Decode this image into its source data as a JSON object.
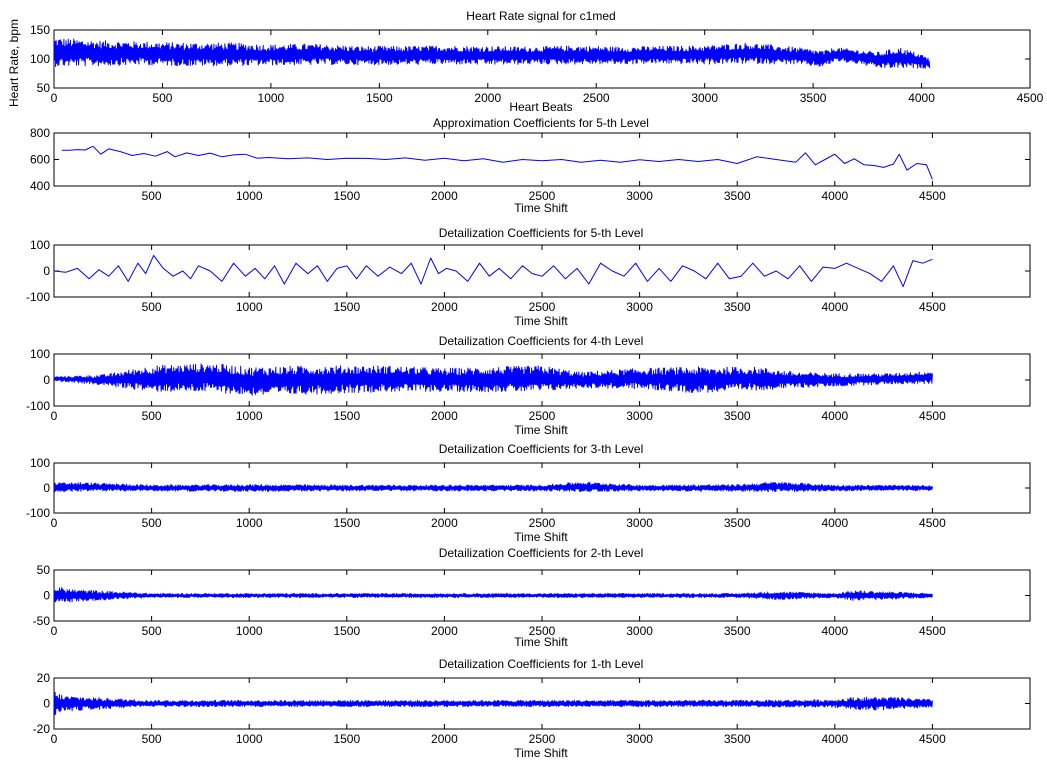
{
  "chart_data": [
    {
      "type": "line",
      "title": "Heart Rate signal for c1med",
      "xlabel": "Heart Beats",
      "ylabel": "Heart Rate, bpm",
      "xlim": [
        0,
        4500
      ],
      "ylim": [
        50,
        150
      ],
      "xticks": [
        0,
        500,
        1000,
        1500,
        2000,
        2500,
        3000,
        3500,
        4000,
        4500
      ],
      "yticks": [
        50,
        100,
        150
      ],
      "color": "#0000ff",
      "series": [
        {
          "x": [
            0,
            200,
            400,
            600,
            800,
            1000,
            1200,
            1400,
            1600,
            1800,
            2000,
            2200,
            2400,
            2600,
            2800,
            3000,
            3200,
            3400,
            3550,
            3600,
            3700,
            3800,
            3900,
            4000,
            4040
          ],
          "y": [
            112,
            110,
            110,
            108,
            108,
            107,
            108,
            106,
            106,
            107,
            106,
            106,
            107,
            106,
            107,
            107,
            110,
            106,
            100,
            108,
            104,
            98,
            102,
            96,
            92
          ],
          "amplitude": [
            25,
            22,
            20,
            20,
            20,
            18,
            18,
            16,
            16,
            16,
            16,
            15,
            16,
            15,
            15,
            16,
            18,
            15,
            14,
            12,
            12,
            14,
            18,
            12,
            8
          ]
        }
      ]
    },
    {
      "type": "line",
      "title": "Approximation Coefficients for 5-th Level",
      "xlabel": "Time Shift",
      "xlim": [
        0,
        5000
      ],
      "ylim": [
        400,
        800
      ],
      "xticks": [
        500,
        1000,
        1500,
        2000,
        2500,
        3000,
        3500,
        4000,
        4500
      ],
      "yticks": [
        400,
        600,
        800
      ],
      "color": "#0000ff",
      "series": [
        {
          "x": [
            40,
            80,
            120,
            160,
            200,
            240,
            280,
            340,
            400,
            460,
            520,
            580,
            620,
            680,
            740,
            800,
            860,
            920,
            980,
            1040,
            1100,
            1200,
            1300,
            1400,
            1500,
            1600,
            1700,
            1800,
            1900,
            2000,
            2100,
            2200,
            2300,
            2400,
            2500,
            2600,
            2700,
            2800,
            2900,
            3000,
            3100,
            3200,
            3300,
            3400,
            3500,
            3600,
            3700,
            3800,
            3850,
            3900,
            3950,
            4000,
            4050,
            4100,
            4150,
            4200,
            4250,
            4300,
            4330,
            4370,
            4420,
            4470,
            4500
          ],
          "y": [
            670,
            670,
            675,
            672,
            700,
            640,
            680,
            660,
            630,
            645,
            625,
            660,
            620,
            650,
            630,
            648,
            620,
            635,
            640,
            610,
            615,
            605,
            612,
            600,
            610,
            608,
            600,
            612,
            595,
            610,
            590,
            605,
            580,
            600,
            590,
            600,
            580,
            595,
            580,
            598,
            585,
            600,
            585,
            600,
            570,
            620,
            600,
            580,
            650,
            560,
            600,
            640,
            570,
            605,
            560,
            555,
            540,
            565,
            640,
            520,
            570,
            560,
            450
          ]
        }
      ]
    },
    {
      "type": "line",
      "title": "Detailization Coefficients for 5-th Level",
      "xlabel": "Time Shift",
      "xlim": [
        0,
        5000
      ],
      "ylim": [
        -100,
        100
      ],
      "xticks": [
        500,
        1000,
        1500,
        2000,
        2500,
        3000,
        3500,
        4000,
        4500
      ],
      "yticks": [
        -100,
        0,
        100
      ],
      "color": "#0000ff",
      "series": [
        {
          "x": [
            0,
            60,
            120,
            180,
            230,
            280,
            330,
            380,
            430,
            470,
            510,
            560,
            610,
            660,
            700,
            740,
            800,
            860,
            920,
            980,
            1030,
            1080,
            1130,
            1180,
            1240,
            1300,
            1350,
            1400,
            1450,
            1500,
            1550,
            1600,
            1660,
            1720,
            1780,
            1830,
            1880,
            1930,
            1970,
            2010,
            2060,
            2120,
            2180,
            2230,
            2280,
            2340,
            2400,
            2450,
            2500,
            2560,
            2620,
            2680,
            2740,
            2800,
            2860,
            2920,
            2980,
            3040,
            3100,
            3160,
            3220,
            3280,
            3340,
            3400,
            3460,
            3520,
            3580,
            3640,
            3700,
            3760,
            3820,
            3880,
            3940,
            4000,
            4060,
            4120,
            4180,
            4240,
            4300,
            4350,
            4400,
            4450,
            4500
          ],
          "y": [
            0,
            -5,
            10,
            -30,
            5,
            -20,
            20,
            -40,
            30,
            -10,
            60,
            10,
            -20,
            0,
            -30,
            20,
            0,
            -40,
            30,
            -20,
            10,
            -30,
            20,
            -50,
            30,
            -10,
            20,
            -40,
            10,
            20,
            -30,
            20,
            -20,
            15,
            -10,
            30,
            -50,
            50,
            -10,
            10,
            0,
            -40,
            30,
            -20,
            10,
            -30,
            20,
            -10,
            -20,
            20,
            -30,
            10,
            -50,
            30,
            0,
            -20,
            30,
            -40,
            10,
            -40,
            20,
            0,
            -30,
            30,
            -30,
            -20,
            30,
            -20,
            0,
            -30,
            20,
            -40,
            15,
            10,
            30,
            10,
            -10,
            -40,
            20,
            -60,
            40,
            30,
            45
          ]
        }
      ]
    },
    {
      "type": "line",
      "title": "Detailization Coefficients for 4-th Level",
      "xlabel": "Time Shift",
      "xlim": [
        0,
        5000
      ],
      "ylim": [
        -100,
        100
      ],
      "xticks": [
        0,
        500,
        1000,
        1500,
        2000,
        2500,
        3000,
        3500,
        4000,
        4500
      ],
      "yticks": [
        -100,
        0,
        100
      ],
      "color": "#0000ff",
      "series": [
        {
          "x": [
            0,
            250,
            500,
            800,
            1000,
            1300,
            1700,
            2000,
            2500,
            2700,
            3000,
            3300,
            3600,
            3800,
            4000,
            4300,
            4500
          ],
          "y": [
            5,
            0,
            5,
            10,
            -5,
            0,
            5,
            0,
            5,
            0,
            5,
            0,
            5,
            0,
            0,
            5,
            10
          ],
          "amplitude": [
            8,
            20,
            50,
            55,
            55,
            55,
            50,
            45,
            50,
            30,
            40,
            50,
            45,
            30,
            25,
            20,
            25
          ]
        }
      ]
    },
    {
      "type": "line",
      "title": "Detailization Coefficients for 3-th Level",
      "xlabel": "Time Shift",
      "xlim": [
        0,
        5000
      ],
      "ylim": [
        -100,
        100
      ],
      "xticks": [
        0,
        500,
        1000,
        1500,
        2000,
        2500,
        3000,
        3500,
        4000,
        4500
      ],
      "yticks": [
        -100,
        0,
        100
      ],
      "color": "#0000ff",
      "series": [
        {
          "x": [
            0,
            100,
            500,
            1000,
            1500,
            2000,
            2500,
            2700,
            3000,
            3500,
            3700,
            4000,
            4500
          ],
          "y": [
            0,
            5,
            0,
            0,
            0,
            0,
            0,
            5,
            0,
            0,
            5,
            0,
            0
          ],
          "amplitude": [
            20,
            18,
            12,
            14,
            12,
            12,
            12,
            20,
            12,
            14,
            20,
            12,
            10
          ]
        }
      ]
    },
    {
      "type": "line",
      "title": "Detailization Coefficients for 2-th Level",
      "xlabel": "Time Shift",
      "xlim": [
        0,
        5000
      ],
      "ylim": [
        -50,
        50
      ],
      "xticks": [
        0,
        500,
        1000,
        1500,
        2000,
        2500,
        3000,
        3500,
        4000,
        4500
      ],
      "yticks": [
        -50,
        0,
        50
      ],
      "color": "#0000ff",
      "series": [
        {
          "x": [
            0,
            100,
            500,
            1000,
            1500,
            2000,
            2500,
            3000,
            3500,
            3700,
            4000,
            4100,
            4500
          ],
          "y": [
            0,
            0,
            0,
            0,
            0,
            0,
            0,
            0,
            0,
            0,
            0,
            0,
            0
          ],
          "amplitude": [
            18,
            12,
            4,
            4,
            4,
            4,
            4,
            4,
            4,
            8,
            4,
            10,
            4
          ]
        }
      ]
    },
    {
      "type": "line",
      "title": "Detailization Coefficients for 1-th Level",
      "xlabel": "Time Shift",
      "xlim": [
        0,
        5000
      ],
      "ylim": [
        -20,
        20
      ],
      "xticks": [
        0,
        500,
        1000,
        1500,
        2000,
        2500,
        3000,
        3500,
        4000,
        4500
      ],
      "yticks": [
        -20,
        0,
        20
      ],
      "color": "#0000ff",
      "series": [
        {
          "x": [
            0,
            50,
            500,
            1000,
            1500,
            2000,
            2500,
            3000,
            3500,
            4000,
            4100,
            4300,
            4500
          ],
          "y": [
            0,
            0,
            0,
            0,
            0,
            0,
            0,
            0,
            0,
            0,
            0,
            0,
            0
          ],
          "amplitude": [
            10,
            6,
            2.5,
            2.5,
            2.5,
            2.5,
            2.5,
            2.5,
            2.5,
            3,
            5,
            5,
            3
          ]
        }
      ]
    }
  ]
}
